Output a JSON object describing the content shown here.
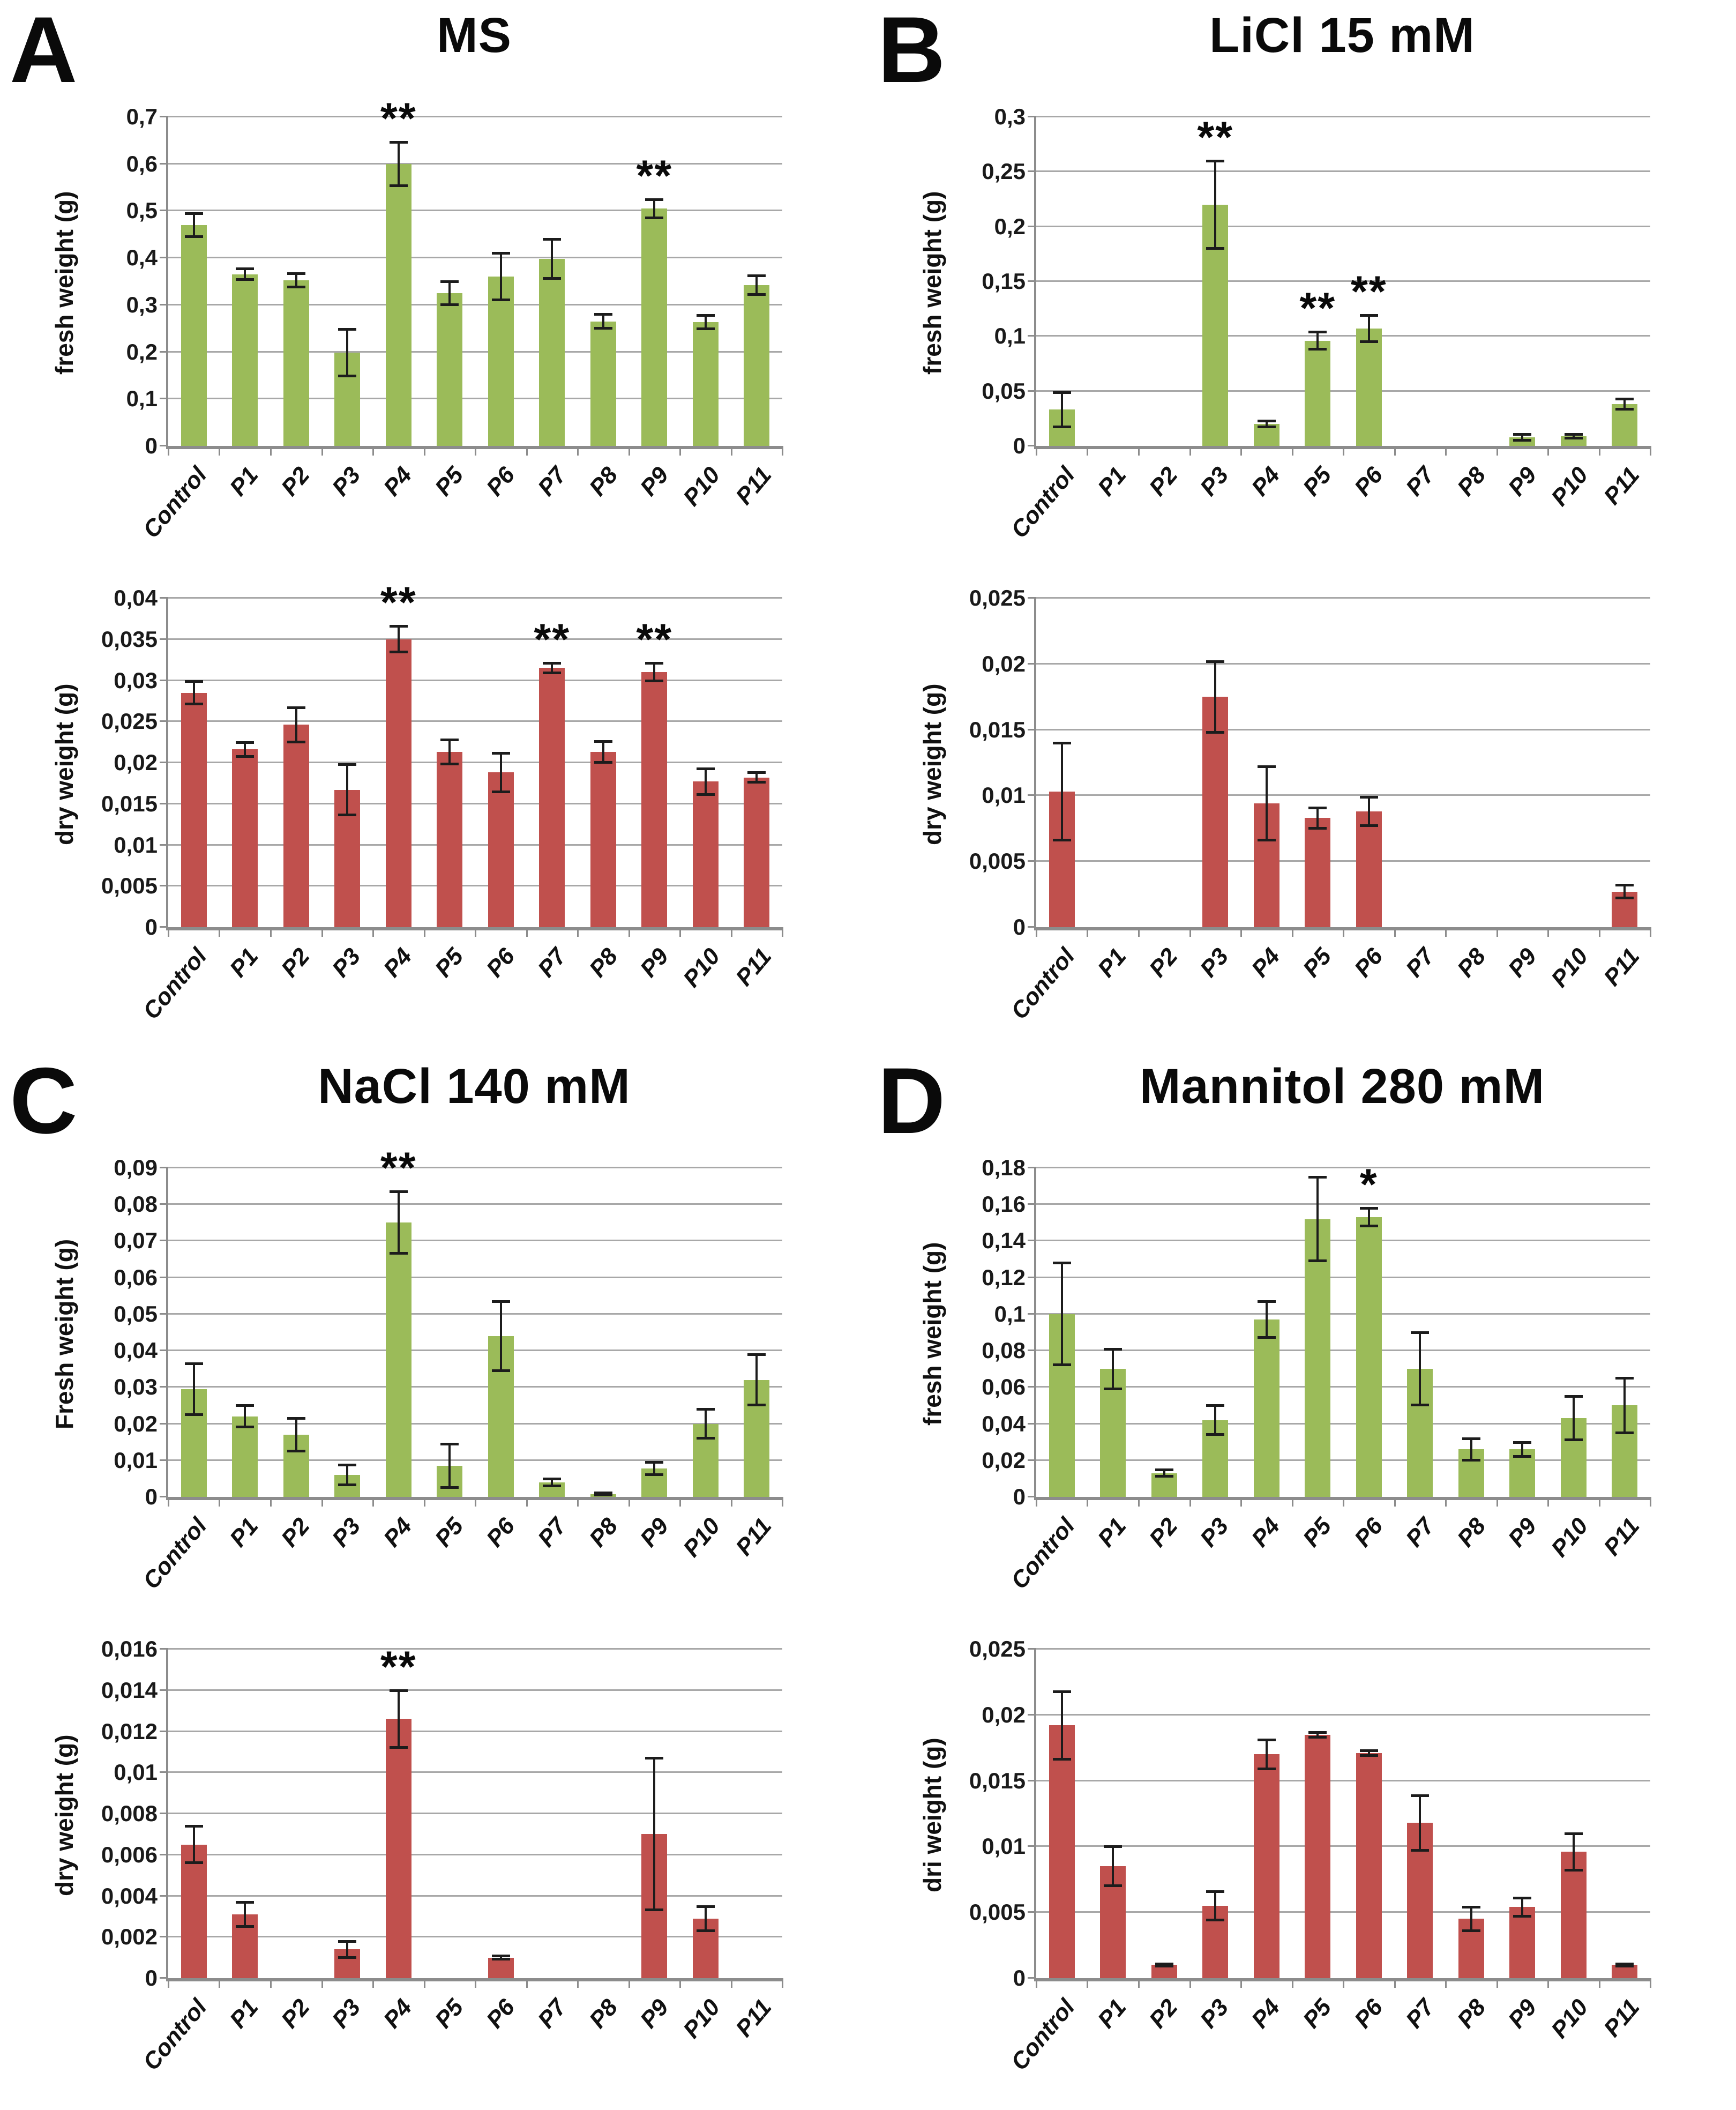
{
  "panels": [
    {
      "letter": "A",
      "title": "MS"
    },
    {
      "letter": "B",
      "title": "LiCl 15 mM"
    },
    {
      "letter": "C",
      "title": "NaCl 140 mM"
    },
    {
      "letter": "D",
      "title": "Mannitol 280 mM"
    }
  ],
  "chart_data": [
    {
      "type": "bar",
      "panel": "A",
      "title": "MS",
      "ylabel": "fresh weight (g)",
      "categories": [
        "Control",
        "P1",
        "P2",
        "P3",
        "P4",
        "P5",
        "P6",
        "P7",
        "P8",
        "P9",
        "P10",
        "P11"
      ],
      "values": [
        0.47,
        0.365,
        0.352,
        0.198,
        0.6,
        0.325,
        0.36,
        0.398,
        0.265,
        0.505,
        0.263,
        0.342
      ],
      "errors": [
        0.025,
        0.012,
        0.015,
        0.05,
        0.047,
        0.025,
        0.05,
        0.042,
        0.015,
        0.02,
        0.015,
        0.02
      ],
      "significance": [
        "",
        "",
        "",
        "",
        "**",
        "",
        "",
        "",
        "",
        "**",
        "",
        ""
      ],
      "ylim": [
        0,
        0.7
      ],
      "yticks": [
        0,
        0.1,
        0.2,
        0.3,
        0.4,
        0.5,
        0.6,
        0.7
      ],
      "ytick_labels": [
        "0",
        "0,1",
        "0,2",
        "0,3",
        "0,4",
        "0,5",
        "0,6",
        "0,7"
      ],
      "bar_color": "#9BBB59",
      "grid": true,
      "legend": "none"
    },
    {
      "type": "bar",
      "panel": "A",
      "title": "MS",
      "ylabel": "dry weight (g)",
      "categories": [
        "Control",
        "P1",
        "P2",
        "P3",
        "P4",
        "P5",
        "P6",
        "P7",
        "P8",
        "P9",
        "P10",
        "P11"
      ],
      "values": [
        0.0285,
        0.0216,
        0.0246,
        0.0167,
        0.035,
        0.0213,
        0.0188,
        0.0315,
        0.0213,
        0.031,
        0.0177,
        0.0182
      ],
      "errors": [
        0.0014,
        0.0009,
        0.0021,
        0.0031,
        0.0016,
        0.0015,
        0.0024,
        0.0006,
        0.0013,
        0.0011,
        0.0016,
        0.0006
      ],
      "significance": [
        "",
        "",
        "",
        "",
        "**",
        "",
        "",
        "**",
        "",
        "**",
        "",
        ""
      ],
      "ylim": [
        0,
        0.04
      ],
      "yticks": [
        0,
        0.005,
        0.01,
        0.015,
        0.02,
        0.025,
        0.03,
        0.035,
        0.04
      ],
      "ytick_labels": [
        "0",
        "0,005",
        "0,01",
        "0,015",
        "0,02",
        "0,025",
        "0,03",
        "0,035",
        "0,04"
      ],
      "bar_color": "#C0504D",
      "grid": true,
      "legend": "none"
    },
    {
      "type": "bar",
      "panel": "B",
      "title": "LiCl 15 mM",
      "ylabel": "fresh weight (g)",
      "categories": [
        "Control",
        "P1",
        "P2",
        "P3",
        "P4",
        "P5",
        "P6",
        "P7",
        "P8",
        "P9",
        "P10",
        "P11"
      ],
      "values": [
        0.033,
        0,
        0,
        0.22,
        0.02,
        0.096,
        0.107,
        0,
        0,
        0.008,
        0.009,
        0.038
      ],
      "errors": [
        0.016,
        0,
        0,
        0.04,
        0.003,
        0.008,
        0.012,
        0,
        0,
        0.003,
        0.002,
        0.005
      ],
      "significance": [
        "",
        "",
        "",
        "**",
        "",
        "**",
        "**",
        "",
        "",
        "",
        "",
        ""
      ],
      "ylim": [
        0,
        0.3
      ],
      "yticks": [
        0,
        0.05,
        0.1,
        0.15,
        0.2,
        0.25,
        0.3
      ],
      "ytick_labels": [
        "0",
        "0,05",
        "0,1",
        "0,15",
        "0,2",
        "0,25",
        "0,3"
      ],
      "bar_color": "#9BBB59",
      "grid": true,
      "legend": "none"
    },
    {
      "type": "bar",
      "panel": "B",
      "title": "LiCl 15 mM",
      "ylabel": "dry weight (g)",
      "categories": [
        "Control",
        "P1",
        "P2",
        "P3",
        "P4",
        "P5",
        "P6",
        "P7",
        "P8",
        "P9",
        "P10",
        "P11"
      ],
      "values": [
        0.0103,
        0,
        0,
        0.0175,
        0.0094,
        0.0083,
        0.0088,
        0,
        0,
        0,
        0,
        0.0027
      ],
      "errors": [
        0.0037,
        0,
        0,
        0.0027,
        0.0028,
        0.0008,
        0.0011,
        0,
        0,
        0,
        0,
        0.0005
      ],
      "significance": [
        "",
        "",
        "",
        "",
        "",
        "",
        "",
        "",
        "",
        "",
        "",
        ""
      ],
      "ylim": [
        0,
        0.025
      ],
      "yticks": [
        0,
        0.005,
        0.01,
        0.015,
        0.02,
        0.025
      ],
      "ytick_labels": [
        "0",
        "0,005",
        "0,01",
        "0,015",
        "0,02",
        "0,025"
      ],
      "bar_color": "#C0504D",
      "grid": true,
      "legend": "none"
    },
    {
      "type": "bar",
      "panel": "C",
      "title": "NaCl 140 mM",
      "ylabel": "Fresh weight (g)",
      "categories": [
        "Control",
        "P1",
        "P2",
        "P3",
        "P4",
        "P5",
        "P6",
        "P7",
        "P8",
        "P9",
        "P10",
        "P11"
      ],
      "values": [
        0.0295,
        0.022,
        0.017,
        0.006,
        0.075,
        0.0085,
        0.044,
        0.004,
        0.0008,
        0.0078,
        0.02,
        0.032
      ],
      "errors": [
        0.007,
        0.003,
        0.0045,
        0.0028,
        0.0085,
        0.006,
        0.0095,
        0.001,
        0.0004,
        0.0018,
        0.004,
        0.007
      ],
      "significance": [
        "",
        "",
        "",
        "",
        "**",
        "",
        "",
        "",
        "",
        "",
        "",
        ""
      ],
      "ylim": [
        0,
        0.09
      ],
      "yticks": [
        0,
        0.01,
        0.02,
        0.03,
        0.04,
        0.05,
        0.06,
        0.07,
        0.08,
        0.09
      ],
      "ytick_labels": [
        "0",
        "0,01",
        "0,02",
        "0,03",
        "0,04",
        "0,05",
        "0,06",
        "0,07",
        "0,08",
        "0,09"
      ],
      "bar_color": "#9BBB59",
      "grid": true,
      "legend": "none"
    },
    {
      "type": "bar",
      "panel": "C",
      "title": "NaCl 140 mM",
      "ylabel": "dry weight (g)",
      "categories": [
        "Control",
        "P1",
        "P2",
        "P3",
        "P4",
        "P5",
        "P6",
        "P7",
        "P8",
        "P9",
        "P10",
        "P11"
      ],
      "values": [
        0.0065,
        0.0031,
        0,
        0.0014,
        0.0126,
        0,
        0.001,
        0,
        0,
        0.007,
        0.0029,
        0
      ],
      "errors": [
        0.0009,
        0.0006,
        0,
        0.0004,
        0.0014,
        0,
        0.0001,
        0,
        0,
        0.0037,
        0.0006,
        0
      ],
      "significance": [
        "",
        "",
        "",
        "",
        "**",
        "",
        "",
        "",
        "",
        "",
        "",
        ""
      ],
      "ylim": [
        0,
        0.016
      ],
      "yticks": [
        0,
        0.002,
        0.004,
        0.006,
        0.008,
        0.01,
        0.012,
        0.014,
        0.016
      ],
      "ytick_labels": [
        "0",
        "0,002",
        "0,004",
        "0,006",
        "0,008",
        "0,01",
        "0,012",
        "0,014",
        "0,016"
      ],
      "bar_color": "#C0504D",
      "grid": true,
      "legend": "none"
    },
    {
      "type": "bar",
      "panel": "D",
      "title": "Mannitol 280 mM",
      "ylabel": "fresh weight (g)",
      "categories": [
        "Control",
        "P1",
        "P2",
        "P3",
        "P4",
        "P5",
        "P6",
        "P7",
        "P8",
        "P9",
        "P10",
        "P11"
      ],
      "values": [
        0.1,
        0.07,
        0.013,
        0.042,
        0.097,
        0.152,
        0.153,
        0.07,
        0.026,
        0.026,
        0.043,
        0.05
      ],
      "errors": [
        0.028,
        0.011,
        0.002,
        0.008,
        0.01,
        0.023,
        0.005,
        0.02,
        0.006,
        0.004,
        0.012,
        0.015
      ],
      "significance": [
        "",
        "",
        "",
        "",
        "",
        "",
        "*",
        "",
        "",
        "",
        "",
        ""
      ],
      "ylim": [
        0,
        0.18
      ],
      "yticks": [
        0,
        0.02,
        0.04,
        0.06,
        0.08,
        0.1,
        0.12,
        0.14,
        0.16,
        0.18
      ],
      "ytick_labels": [
        "0",
        "0,02",
        "0,04",
        "0,06",
        "0,08",
        "0,1",
        "0,12",
        "0,14",
        "0,16",
        "0,18"
      ],
      "bar_color": "#9BBB59",
      "grid": true,
      "legend": "none"
    },
    {
      "type": "bar",
      "panel": "D",
      "title": "Mannitol 280 mM",
      "ylabel": "dri weight (g)",
      "categories": [
        "Control",
        "P1",
        "P2",
        "P3",
        "P4",
        "P5",
        "P6",
        "P7",
        "P8",
        "P9",
        "P10",
        "P11"
      ],
      "values": [
        0.0192,
        0.0085,
        0.001,
        0.0055,
        0.017,
        0.0185,
        0.0171,
        0.0118,
        0.0045,
        0.0054,
        0.0096,
        0.001
      ],
      "errors": [
        0.0026,
        0.0015,
        0.0001,
        0.0011,
        0.0011,
        0.0002,
        0.0002,
        0.0021,
        0.0009,
        0.0007,
        0.0014,
        0.0001
      ],
      "significance": [
        "",
        "",
        "",
        "",
        "",
        "",
        "",
        "",
        "",
        "",
        "",
        ""
      ],
      "ylim": [
        0,
        0.025
      ],
      "yticks": [
        0,
        0.005,
        0.01,
        0.015,
        0.02,
        0.025
      ],
      "ytick_labels": [
        "0",
        "0,005",
        "0,01",
        "0,015",
        "0,02",
        "0,025"
      ],
      "bar_color": "#C0504D",
      "grid": true,
      "legend": "none"
    }
  ]
}
